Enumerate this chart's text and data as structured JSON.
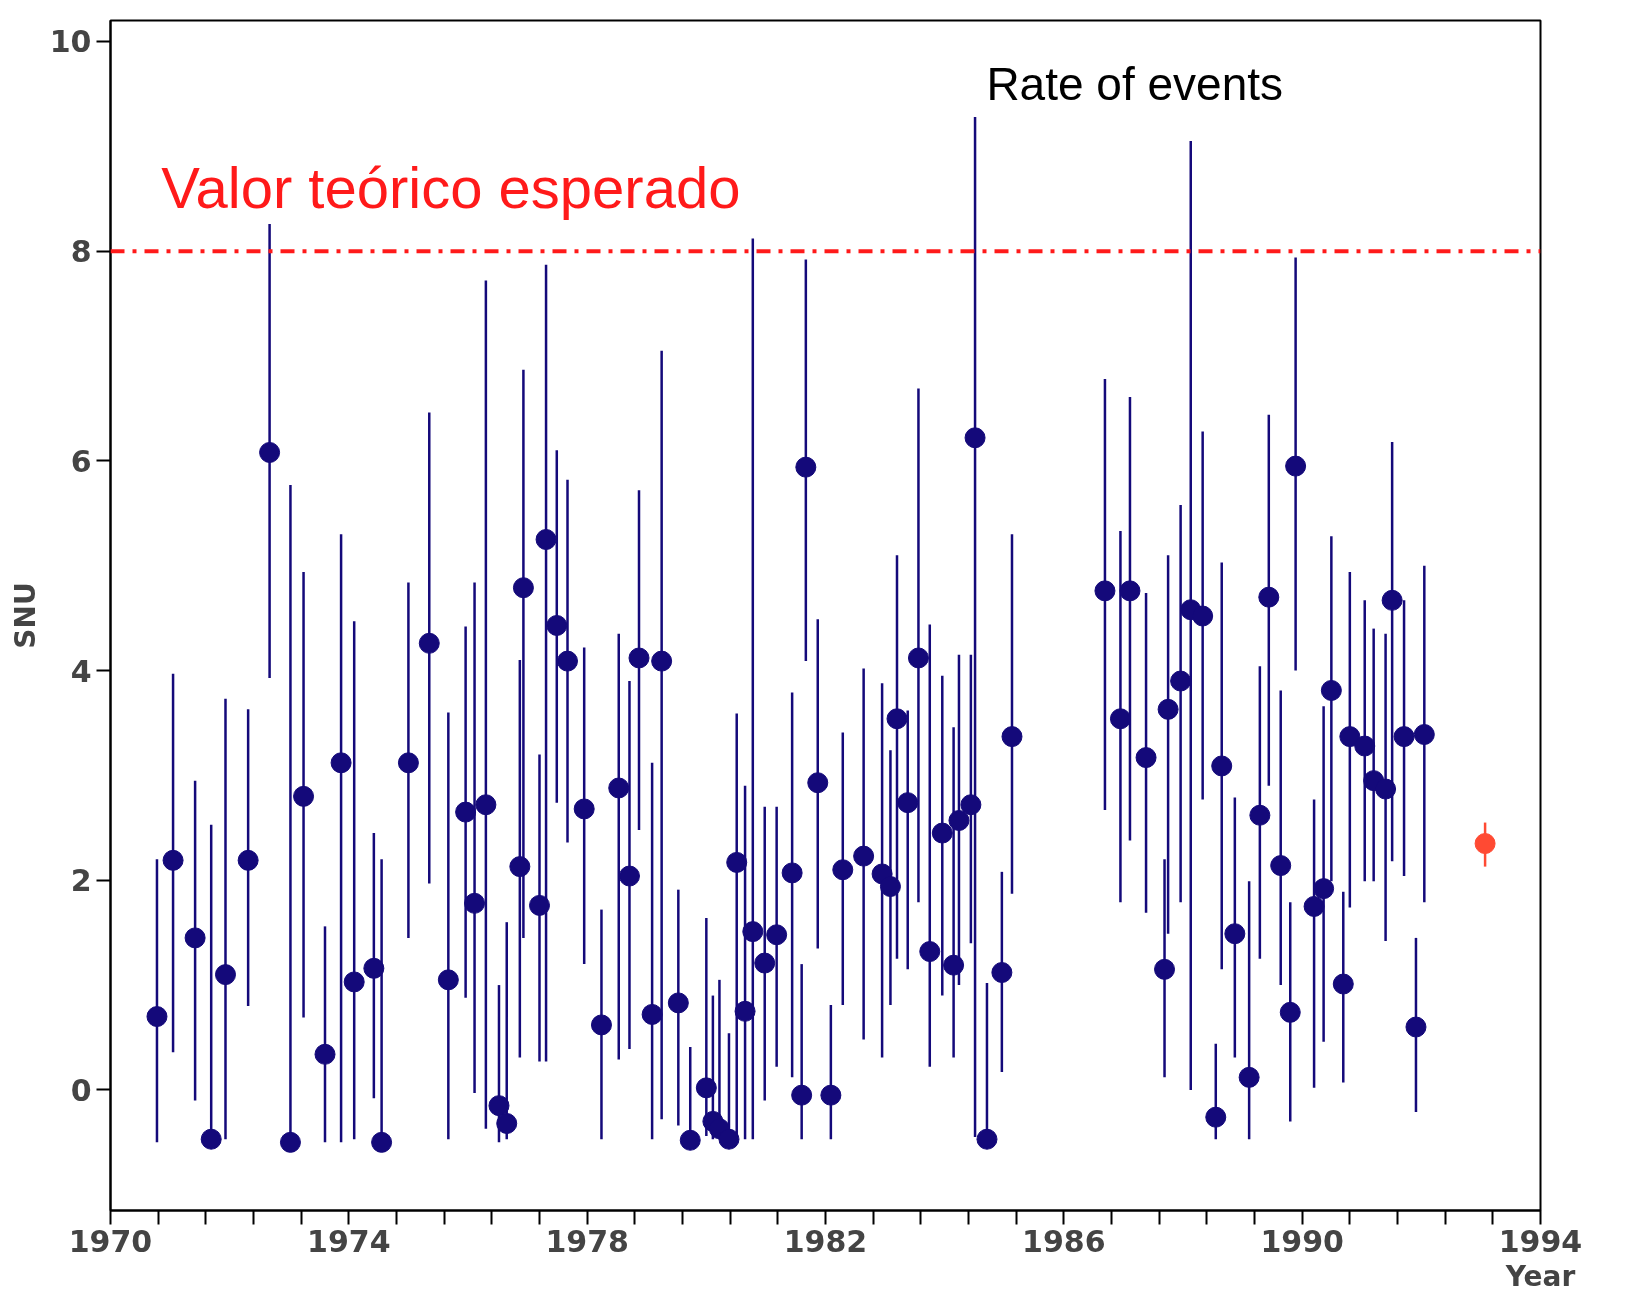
{
  "chart_data": {
    "type": "scatter",
    "xlabel": "Year",
    "ylabel": "SNU",
    "xlim": [
      1970,
      1994
    ],
    "ylim": [
      -1.15,
      10.2
    ],
    "xticks": [
      {
        "value": 1970,
        "label": "1970"
      },
      {
        "value": 1970.8,
        "label": null
      },
      {
        "value": 1971.6,
        "label": null
      },
      {
        "value": 1972.4,
        "label": null
      },
      {
        "value": 1973.2,
        "label": null
      },
      {
        "value": 1974,
        "label": "1974"
      },
      {
        "value": 1974.8,
        "label": null
      },
      {
        "value": 1975.6,
        "label": null
      },
      {
        "value": 1976.4,
        "label": null
      },
      {
        "value": 1977.2,
        "label": null
      },
      {
        "value": 1978,
        "label": "1978"
      },
      {
        "value": 1978.8,
        "label": null
      },
      {
        "value": 1979.6,
        "label": null
      },
      {
        "value": 1980.4,
        "label": null
      },
      {
        "value": 1981.2,
        "label": null
      },
      {
        "value": 1982,
        "label": "1982"
      },
      {
        "value": 1982.8,
        "label": null
      },
      {
        "value": 1983.6,
        "label": null
      },
      {
        "value": 1984.4,
        "label": null
      },
      {
        "value": 1985.2,
        "label": null
      },
      {
        "value": 1986,
        "label": "1986"
      },
      {
        "value": 1986.8,
        "label": null
      },
      {
        "value": 1987.6,
        "label": null
      },
      {
        "value": 1988.4,
        "label": null
      },
      {
        "value": 1989.2,
        "label": null
      },
      {
        "value": 1990,
        "label": "1990"
      },
      {
        "value": 1990.8,
        "label": null
      },
      {
        "value": 1991.6,
        "label": null
      },
      {
        "value": 1992.4,
        "label": null
      },
      {
        "value": 1993.2,
        "label": null
      },
      {
        "value": 1994,
        "label": "1994"
      }
    ],
    "yticks": [
      0,
      2,
      4,
      6,
      8,
      10
    ],
    "marker": "circle",
    "grid": false,
    "annotations": [
      "Rate of events"
    ],
    "ref_lines": [
      {
        "axis": "y",
        "value": 8,
        "label": "Valor teórico esperado",
        "color": "#ff1a1a",
        "line_style": "dashdot"
      }
    ],
    "series": [
      {
        "color": "#14097a",
        "x": [
          1970.78,
          1971.05,
          1971.42,
          1971.69,
          1971.93,
          1972.31,
          1972.67,
          1973.02,
          1973.24,
          1973.6,
          1973.87,
          1974.09,
          1974.42,
          1974.55,
          1975.0,
          1975.35,
          1975.67,
          1975.96,
          1976.11,
          1976.3,
          1976.52,
          1976.65,
          1976.87,
          1976.93,
          1977.2,
          1977.31,
          1977.49,
          1977.67,
          1977.95,
          1978.24,
          1978.53,
          1978.71,
          1978.87,
          1979.09,
          1979.25,
          1979.53,
          1979.73,
          1980.0,
          1980.11,
          1980.22,
          1980.38,
          1980.51,
          1980.65,
          1980.78,
          1980.98,
          1981.18,
          1981.44,
          1981.6,
          1981.67,
          1981.87,
          1982.09,
          1982.29,
          1982.64,
          1982.95,
          1983.09,
          1983.2,
          1983.38,
          1983.56,
          1983.75,
          1983.96,
          1984.15,
          1984.24,
          1984.44,
          1984.51,
          1984.71,
          1984.96,
          1985.13,
          1986.69,
          1986.95,
          1987.11,
          1987.38,
          1987.69,
          1987.75,
          1987.96,
          1988.13,
          1988.33,
          1988.55,
          1988.65,
          1988.87,
          1989.11,
          1989.29,
          1989.44,
          1989.64,
          1989.8,
          1989.89,
          1990.2,
          1990.36,
          1990.49,
          1990.69,
          1990.8,
          1991.05,
          1991.2,
          1991.4,
          1991.51,
          1991.71,
          1991.91,
          1992.05
        ],
        "values": [
          0.7,
          2.19,
          1.45,
          -0.47,
          1.1,
          2.19,
          6.08,
          -0.5,
          2.8,
          0.34,
          3.12,
          1.03,
          1.16,
          -0.5,
          3.12,
          4.26,
          1.05,
          2.65,
          1.78,
          2.72,
          -0.15,
          -0.32,
          2.13,
          4.79,
          1.76,
          5.25,
          4.43,
          4.09,
          2.68,
          0.62,
          2.88,
          2.04,
          4.12,
          0.72,
          4.09,
          0.83,
          -0.48,
          0.02,
          -0.3,
          -0.37,
          -0.47,
          2.17,
          0.75,
          1.51,
          1.21,
          1.48,
          2.07,
          -0.05,
          5.94,
          2.93,
          -0.05,
          2.1,
          2.23,
          2.06,
          1.94,
          3.54,
          2.74,
          4.12,
          1.32,
          2.45,
          1.19,
          2.57,
          2.72,
          6.22,
          -0.47,
          1.12,
          3.37,
          4.76,
          3.54,
          4.76,
          3.17,
          1.15,
          3.63,
          3.9,
          4.58,
          4.52,
          -0.26,
          3.09,
          1.49,
          0.12,
          2.62,
          4.7,
          2.14,
          0.74,
          5.95,
          1.75,
          1.92,
          3.81,
          1.01,
          3.37,
          3.28,
          2.95,
          2.87,
          4.67,
          3.37,
          0.6,
          3.39
        ],
        "errors": [
          [
            -0.5,
            2.2
          ],
          [
            0.36,
            3.97
          ],
          [
            -0.1,
            2.95
          ],
          [
            -0.5,
            2.53
          ],
          [
            -0.47,
            3.73
          ],
          [
            0.8,
            3.63
          ],
          [
            3.93,
            8.26
          ],
          [
            -0.5,
            5.77
          ],
          [
            0.69,
            4.94
          ],
          [
            -0.5,
            1.56
          ],
          [
            -0.5,
            5.3
          ],
          [
            -0.47,
            4.47
          ],
          [
            -0.08,
            2.45
          ],
          [
            -0.5,
            2.2
          ],
          [
            1.45,
            4.84
          ],
          [
            1.97,
            6.46
          ],
          [
            -0.47,
            3.6
          ],
          [
            0.88,
            4.42
          ],
          [
            -0.03,
            4.84
          ],
          [
            -0.37,
            7.72
          ],
          [
            -0.5,
            1.0
          ],
          [
            -0.47,
            1.6
          ],
          [
            0.31,
            4.1
          ],
          [
            1.45,
            6.87
          ],
          [
            0.27,
            3.2
          ],
          [
            0.27,
            7.87
          ],
          [
            2.74,
            6.1
          ],
          [
            2.36,
            5.82
          ],
          [
            1.2,
            4.22
          ],
          [
            -0.47,
            1.72
          ],
          [
            0.29,
            4.35
          ],
          [
            0.39,
            3.9
          ],
          [
            2.48,
            5.72
          ],
          [
            -0.47,
            3.12
          ],
          [
            -0.28,
            7.05
          ],
          [
            -0.34,
            1.91
          ],
          [
            -0.48,
            0.41
          ],
          [
            -0.44,
            1.64
          ],
          [
            -0.47,
            0.9
          ],
          [
            -0.47,
            1.05
          ],
          [
            -0.47,
            0.54
          ],
          [
            -0.47,
            3.59
          ],
          [
            -0.47,
            2.9
          ],
          [
            -0.47,
            8.12
          ],
          [
            -0.1,
            2.7
          ],
          [
            0.22,
            2.7
          ],
          [
            0.12,
            3.79
          ],
          [
            -0.47,
            1.2
          ],
          [
            4.09,
            7.92
          ],
          [
            1.35,
            4.49
          ],
          [
            -0.47,
            0.81
          ],
          [
            0.81,
            3.41
          ],
          [
            0.48,
            4.02
          ],
          [
            0.31,
            3.88
          ],
          [
            0.81,
            3.24
          ],
          [
            1.25,
            5.1
          ],
          [
            1.15,
            3.62
          ],
          [
            1.79,
            6.69
          ],
          [
            0.22,
            4.44
          ],
          [
            0.9,
            3.95
          ],
          [
            0.31,
            3.46
          ],
          [
            1.0,
            4.15
          ],
          [
            1.4,
            4.15
          ],
          [
            -0.45,
            9.28
          ],
          [
            -0.47,
            1.02
          ],
          [
            0.17,
            2.08
          ],
          [
            1.87,
            5.3
          ],
          [
            2.67,
            6.78
          ],
          [
            1.79,
            5.33
          ],
          [
            2.38,
            6.61
          ],
          [
            1.69,
            4.74
          ],
          [
            0.12,
            2.2
          ],
          [
            1.49,
            5.1
          ],
          [
            1.79,
            5.58
          ],
          [
            0.0,
            9.05
          ],
          [
            2.77,
            6.28
          ],
          [
            -0.47,
            0.44
          ],
          [
            1.15,
            5.03
          ],
          [
            0.31,
            2.79
          ],
          [
            -0.47,
            1.99
          ],
          [
            1.25,
            4.04
          ],
          [
            2.9,
            6.44
          ],
          [
            1.0,
            3.81
          ],
          [
            -0.3,
            1.79
          ],
          [
            4.0,
            7.94
          ],
          [
            0.02,
            2.77
          ],
          [
            0.46,
            3.66
          ],
          [
            1.99,
            5.28
          ],
          [
            0.07,
            1.89
          ],
          [
            1.74,
            4.94
          ],
          [
            1.99,
            4.67
          ],
          [
            1.99,
            4.4
          ],
          [
            1.42,
            4.35
          ],
          [
            2.18,
            6.18
          ],
          [
            2.04,
            4.67
          ],
          [
            -0.21,
            1.45
          ],
          [
            1.79,
            5.0
          ]
        ]
      },
      {
        "color": "#ff4a33",
        "x": [
          1993.07
        ],
        "values": [
          2.35
        ],
        "errors": [
          [
            2.13,
            2.55
          ]
        ]
      }
    ]
  }
}
